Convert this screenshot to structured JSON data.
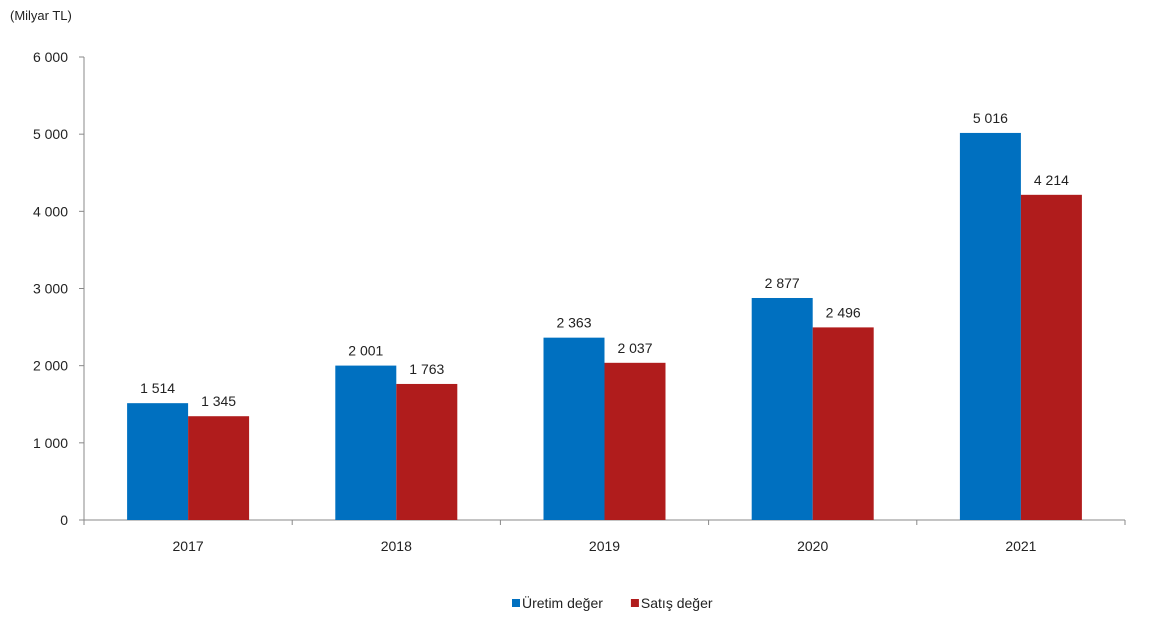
{
  "chart_data": {
    "type": "bar",
    "unit_label": "(Milyar TL)",
    "categories": [
      "2017",
      "2018",
      "2019",
      "2020",
      "2021"
    ],
    "series": [
      {
        "name": "Üretim değer",
        "color": "#0070C0",
        "values": [
          1514,
          2001,
          2363,
          2877,
          5016
        ],
        "labels": [
          "1 514",
          "2 001",
          "2 363",
          "2 877",
          "5 016"
        ]
      },
      {
        "name": "Satış değer",
        "color": "#B01C1C",
        "values": [
          1345,
          1763,
          2037,
          2496,
          4214
        ],
        "labels": [
          "1 345",
          "1 763",
          "2 037",
          "2 496",
          "4 214"
        ]
      }
    ],
    "ylim": [
      0,
      6000
    ],
    "yticks": [
      0,
      1000,
      2000,
      3000,
      4000,
      5000,
      6000
    ],
    "ytick_labels": [
      "0",
      "1 000",
      "2 000",
      "3 000",
      "4 000",
      "5 000",
      "6 000"
    ],
    "grid": false,
    "legend_position": "bottom-center"
  }
}
